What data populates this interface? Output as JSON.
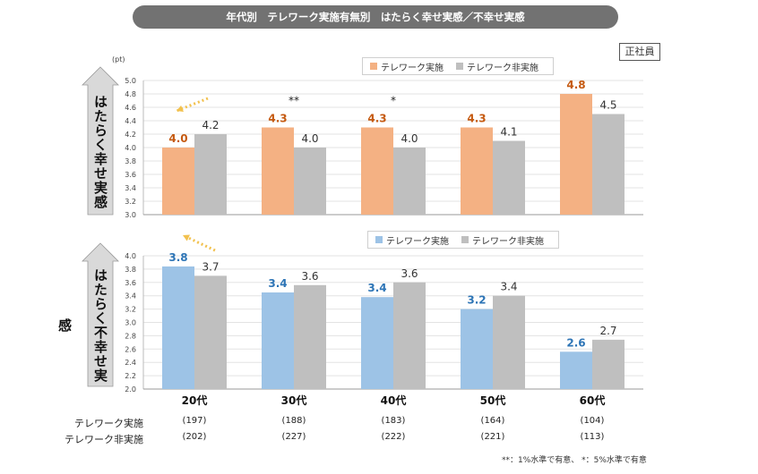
{
  "title": "年代別　テレワーク実施有無別　はたらく幸せ実感／不幸せ実感",
  "badge": "正社員",
  "unit": "(pt)",
  "side_labels": {
    "happy": "はたらく幸せ実感",
    "unhappy": "はたらく不幸せ実感"
  },
  "footnote": "**：1%水準で有意、 *：5%水準で有意",
  "colors": {
    "happy_telework": "#F4B183",
    "unhappy_telework": "#9DC3E6",
    "non_telework": "#BFBFBF",
    "happy_label": "#C55A11",
    "unhappy_label": "#2E75B6",
    "arrow_gray": "#d9d9d9",
    "hint_arrow": "#F2C14E"
  },
  "row_labels": {
    "telework": "テレワーク実施",
    "non_telework": "テレワーク非実施"
  },
  "chart_data": [
    {
      "type": "bar",
      "id": "happy",
      "categories": [
        "20代",
        "30代",
        "40代",
        "50代",
        "60代"
      ],
      "ylim": [
        3.0,
        5.0
      ],
      "yticks": [
        "3.0",
        "3.2",
        "3.4",
        "3.6",
        "3.8",
        "4.0",
        "4.2",
        "4.4",
        "4.6",
        "4.8",
        "5.0"
      ],
      "ytick_values": [
        3.0,
        3.2,
        3.4,
        3.6,
        3.8,
        4.0,
        4.2,
        4.4,
        4.6,
        4.8,
        5.0
      ],
      "series": [
        {
          "name": "テレワーク実施",
          "values": [
            4.0,
            4.3,
            4.3,
            4.3,
            4.8
          ],
          "labels": [
            "4.0",
            "4.3",
            "4.3",
            "4.3",
            "4.8"
          ]
        },
        {
          "name": "テレワーク非実施",
          "values": [
            4.2,
            4.0,
            4.0,
            4.1,
            4.5
          ],
          "labels": [
            "4.2",
            "4.0",
            "4.0",
            "4.1",
            "4.5"
          ]
        }
      ],
      "significance": [
        "",
        "**",
        "*",
        "",
        ""
      ],
      "grid": true,
      "legend": "top-right"
    },
    {
      "type": "bar",
      "id": "unhappy",
      "categories": [
        "20代",
        "30代",
        "40代",
        "50代",
        "60代"
      ],
      "ylim": [
        2.0,
        4.0
      ],
      "yticks": [
        "2.0",
        "2.2",
        "2.4",
        "2.6",
        "2.8",
        "3.0",
        "3.2",
        "3.4",
        "3.6",
        "3.8",
        "4.0"
      ],
      "ytick_values": [
        2.0,
        2.2,
        2.4,
        2.6,
        2.8,
        3.0,
        3.2,
        3.4,
        3.6,
        3.8,
        4.0
      ],
      "series": [
        {
          "name": "テレワーク実施",
          "values": [
            3.84,
            3.45,
            3.38,
            3.2,
            2.56
          ],
          "labels": [
            "3.8",
            "3.4",
            "3.4",
            "3.2",
            "2.6"
          ]
        },
        {
          "name": "テレワーク非実施",
          "values": [
            3.7,
            3.56,
            3.6,
            3.4,
            2.74
          ],
          "labels": [
            "3.7",
            "3.6",
            "3.6",
            "3.4",
            "2.7"
          ]
        }
      ],
      "grid": true,
      "legend": "top-right"
    }
  ],
  "sample_sizes": {
    "telework": [
      "(197)",
      "(188)",
      "(183)",
      "(164)",
      "(104)"
    ],
    "non_telework": [
      "(202)",
      "(227)",
      "(222)",
      "(221)",
      "(113)"
    ]
  }
}
